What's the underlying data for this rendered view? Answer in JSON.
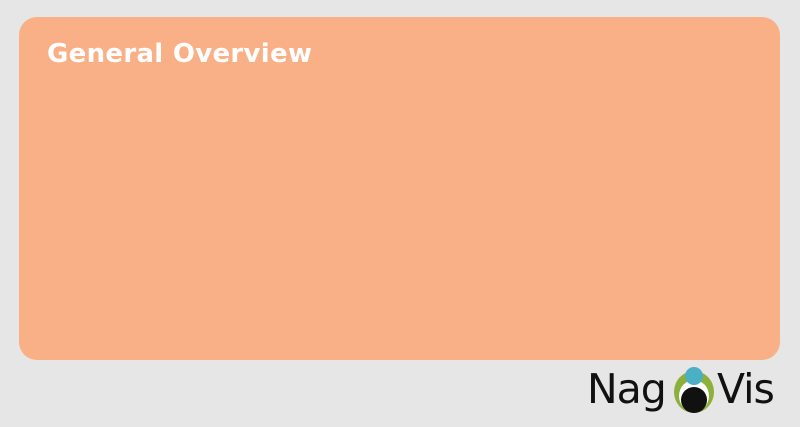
{
  "overview": {
    "title": "General Overview"
  },
  "logo": {
    "text_left": "Nag",
    "text_right": "Vis",
    "mark_icon": "nagvis-eye-icon",
    "colors": {
      "panel": "#f9b087",
      "background": "#e6e6e6",
      "mark_blue": "#4bafc6",
      "mark_green": "#8db03b"
    }
  }
}
